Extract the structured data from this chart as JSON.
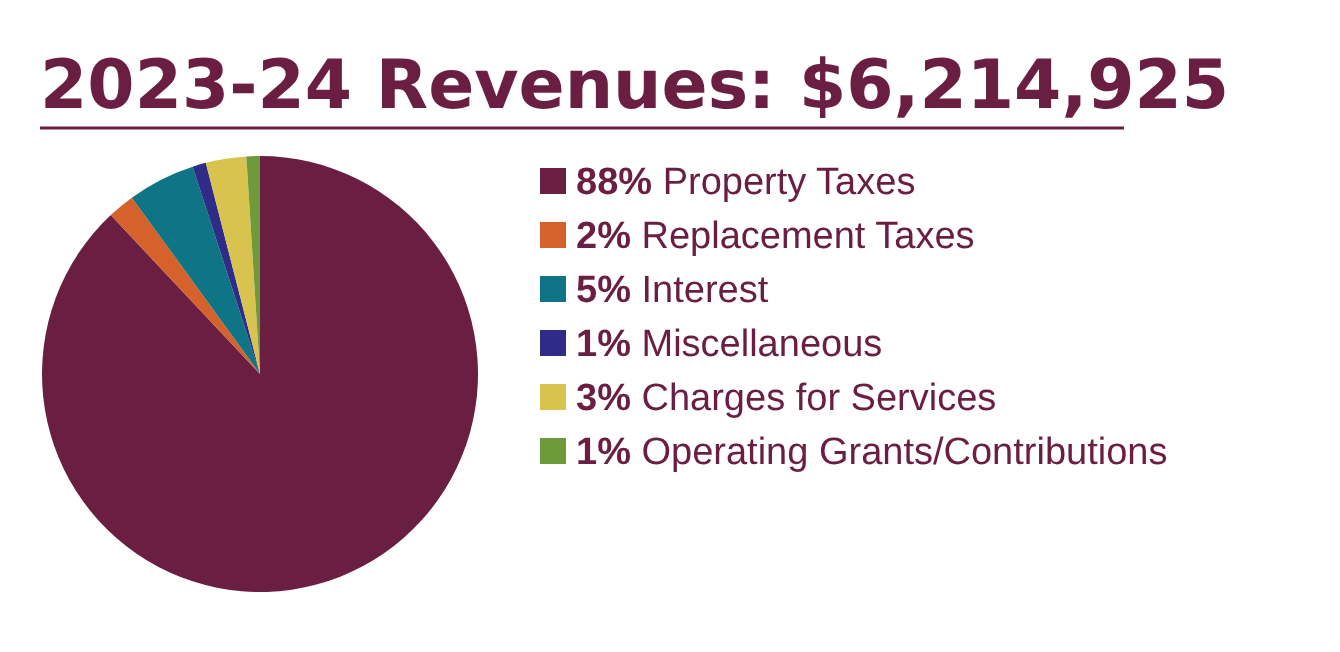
{
  "chart_data": {
    "type": "pie",
    "title": "2023-24 Revenues: $6,214,925",
    "categories": [
      "Property Taxes",
      "Replacement Taxes",
      "Interest",
      "Miscellaneous",
      "Charges for Services",
      "Operating Grants/Contributions"
    ],
    "values": [
      88,
      2,
      5,
      1,
      3,
      1
    ],
    "value_labels": [
      "88%",
      "2%",
      "5%",
      "1%",
      "3%",
      "1%"
    ],
    "colors": [
      "#6a1e42",
      "#d4622a",
      "#0e7486",
      "#2e2c87",
      "#d9c34f",
      "#6e9a3c"
    ],
    "legend": "right"
  }
}
